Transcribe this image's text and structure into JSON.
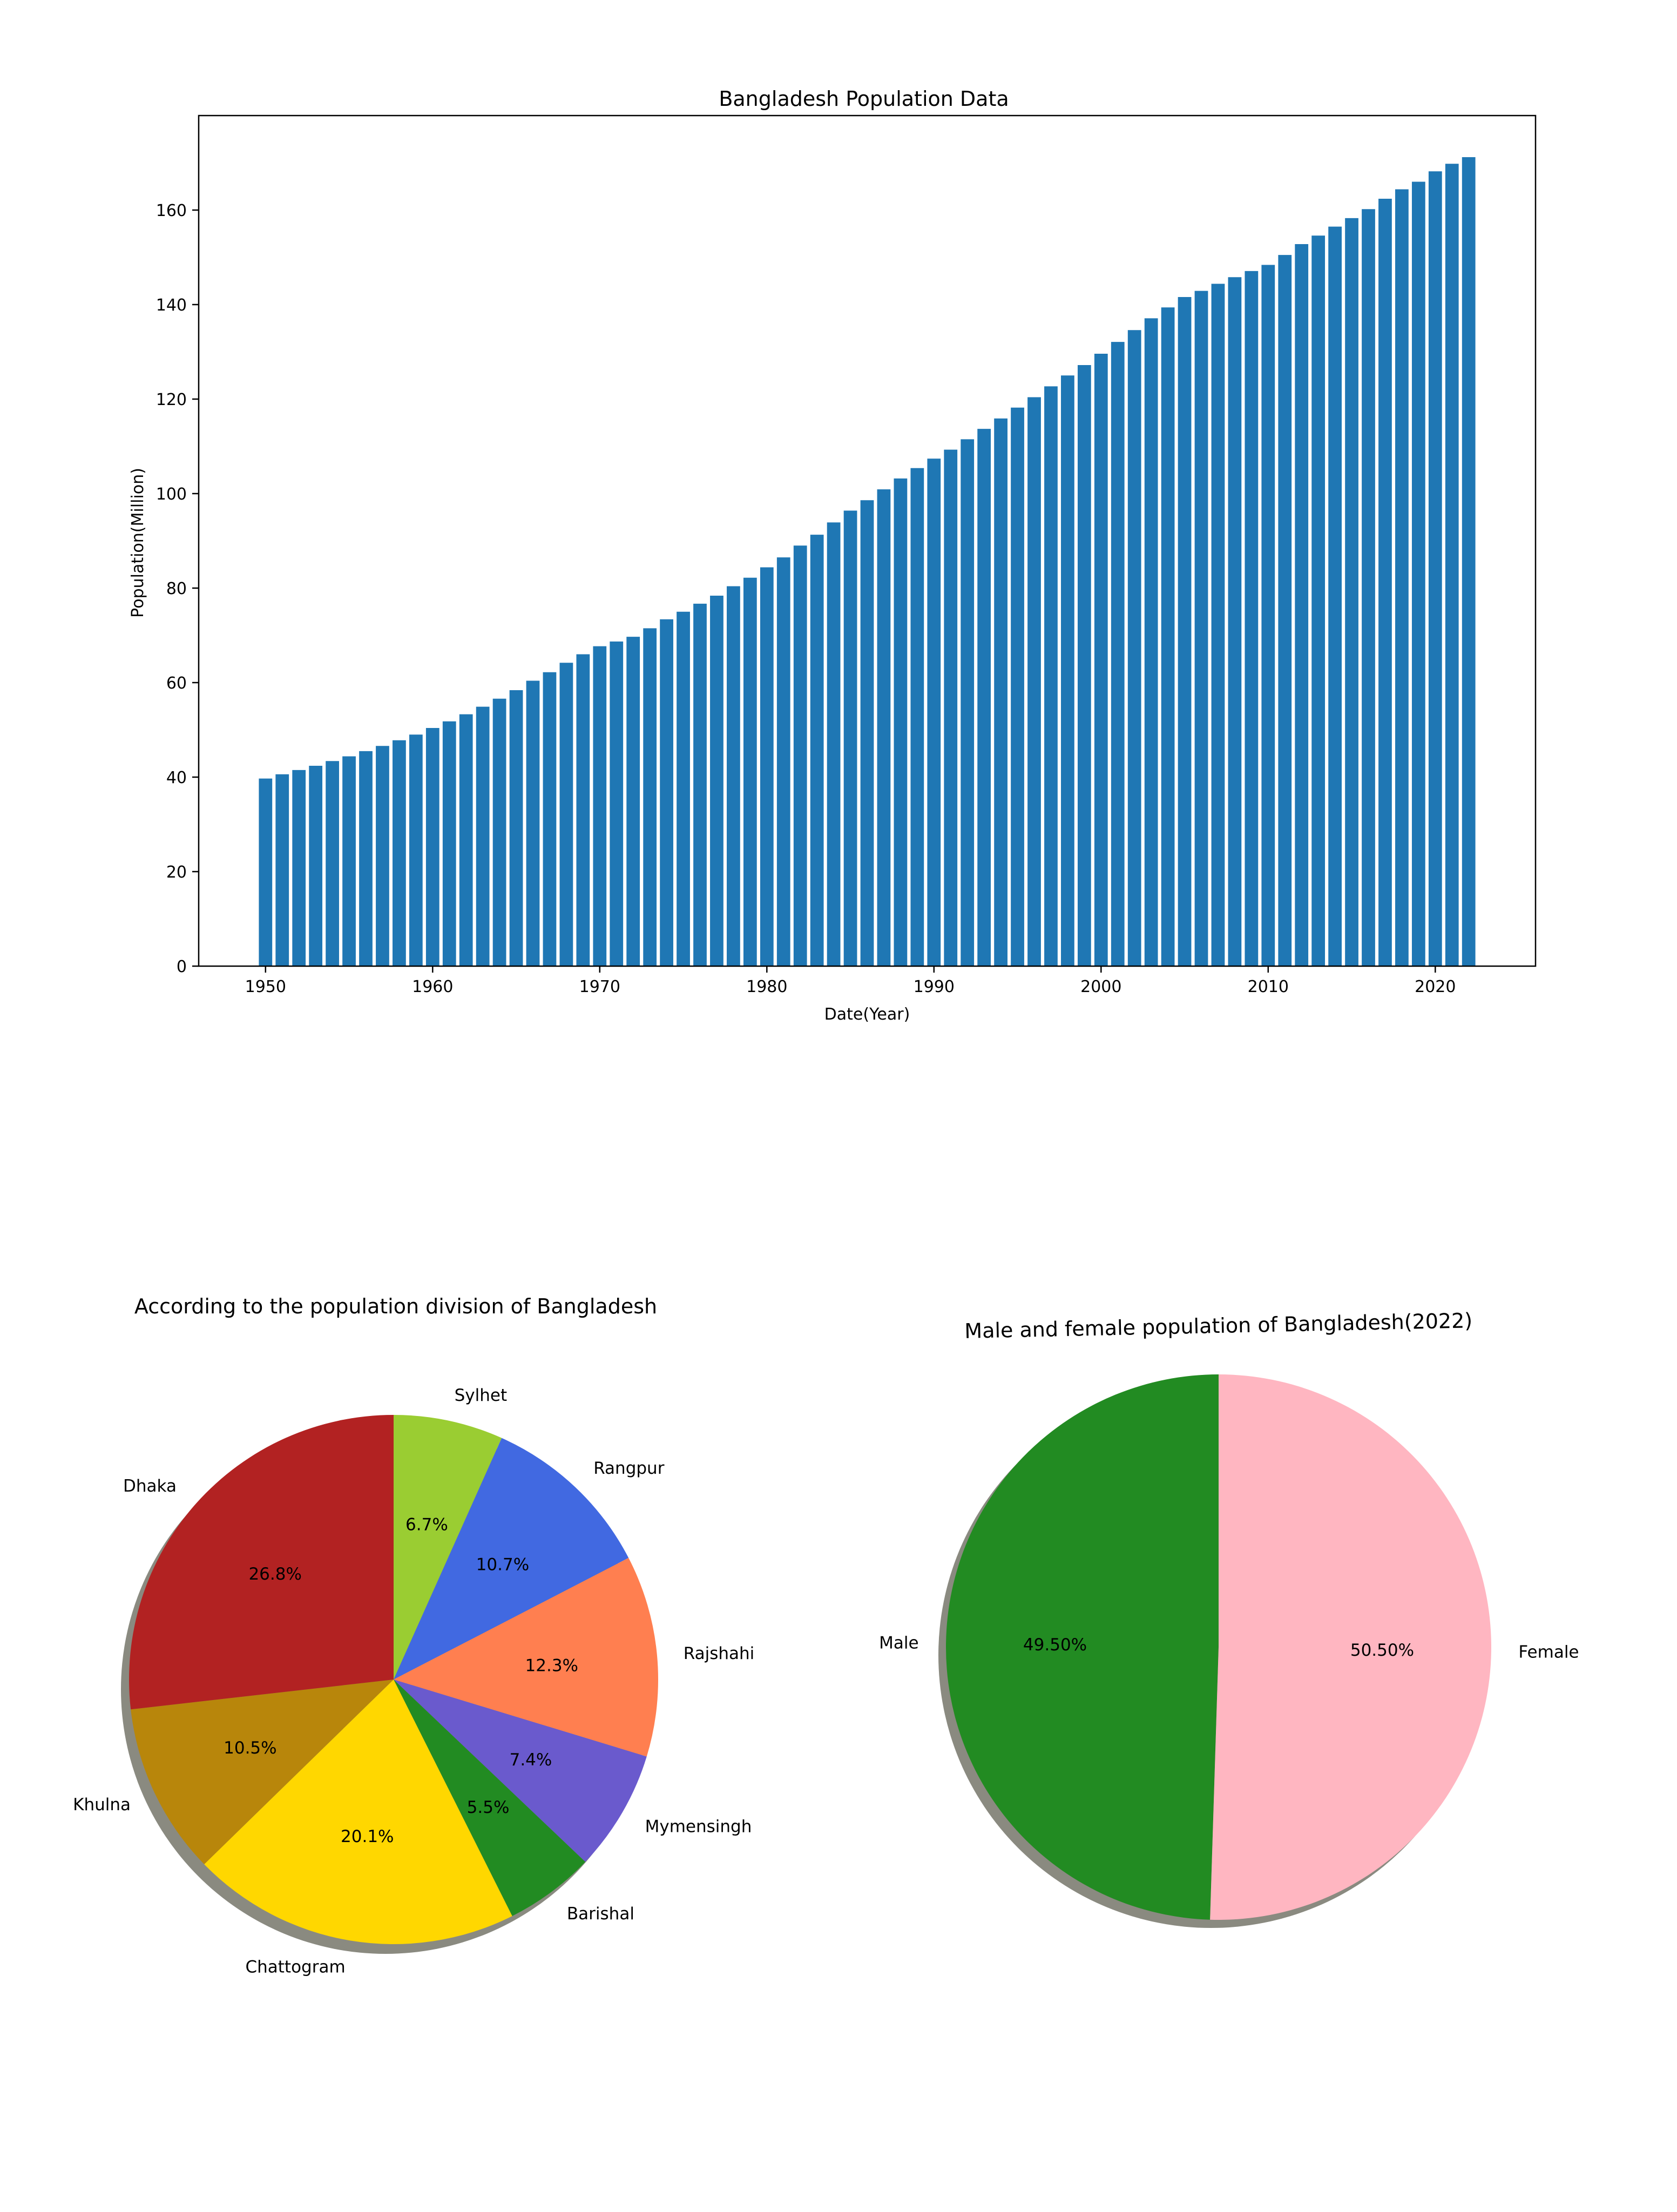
{
  "chart_data": [
    {
      "type": "bar",
      "title": "Bangladesh Population Data",
      "xlabel": "Date(Year)",
      "ylabel": "Population(Million)",
      "xlim": [
        1946,
        2026
      ],
      "ylim": [
        0,
        180
      ],
      "xticks": [
        1950,
        1960,
        1970,
        1980,
        1990,
        2000,
        2010,
        2020
      ],
      "yticks": [
        0,
        20,
        40,
        60,
        80,
        100,
        120,
        140,
        160
      ],
      "grid": false,
      "color": "#1f77b4",
      "x": [
        1950,
        1951,
        1952,
        1953,
        1954,
        1955,
        1956,
        1957,
        1958,
        1959,
        1960,
        1961,
        1962,
        1963,
        1964,
        1965,
        1966,
        1967,
        1968,
        1969,
        1970,
        1971,
        1972,
        1973,
        1974,
        1975,
        1976,
        1977,
        1978,
        1979,
        1980,
        1981,
        1982,
        1983,
        1984,
        1985,
        1986,
        1987,
        1988,
        1989,
        1990,
        1991,
        1992,
        1993,
        1994,
        1995,
        1996,
        1997,
        1998,
        1999,
        2000,
        2001,
        2002,
        2003,
        2004,
        2005,
        2006,
        2007,
        2008,
        2009,
        2010,
        2011,
        2012,
        2013,
        2014,
        2015,
        2016,
        2017,
        2018,
        2019,
        2020,
        2021,
        2022
      ],
      "values": [
        39.7,
        40.6,
        41.5,
        42.4,
        43.4,
        44.4,
        45.5,
        46.6,
        47.8,
        49.0,
        50.4,
        51.8,
        53.3,
        54.9,
        56.6,
        58.4,
        60.4,
        62.2,
        64.2,
        66.0,
        67.7,
        68.7,
        69.7,
        71.5,
        73.4,
        75.0,
        76.7,
        78.4,
        80.4,
        82.2,
        84.4,
        86.5,
        89.0,
        91.3,
        93.9,
        96.4,
        98.6,
        100.9,
        103.2,
        105.4,
        107.4,
        109.3,
        111.5,
        113.7,
        115.9,
        118.2,
        120.4,
        122.7,
        125.0,
        127.2,
        129.6,
        132.1,
        134.6,
        137.1,
        139.4,
        141.6,
        142.9,
        144.4,
        145.8,
        147.1,
        148.4,
        150.5,
        152.8,
        154.6,
        156.5,
        158.3,
        160.2,
        162.4,
        164.4,
        166.0,
        168.2,
        169.8,
        171.2
      ]
    },
    {
      "type": "pie",
      "title": "According to the population division of Bangladesh",
      "start_angle": 90,
      "counterclock": false,
      "shadow": true,
      "slices": [
        {
          "label": "Sylhet",
          "pct": "6.7%",
          "value": 6.7,
          "color": "#9acd32"
        },
        {
          "label": "Rangpur",
          "pct": "10.7%",
          "value": 10.7,
          "color": "#4169e1"
        },
        {
          "label": "Rajshahi",
          "pct": "12.3%",
          "value": 12.3,
          "color": "#ff7f50"
        },
        {
          "label": "Mymensingh",
          "pct": "7.4%",
          "value": 7.4,
          "color": "#6a5acd"
        },
        {
          "label": "Barishal",
          "pct": "5.5%",
          "value": 5.5,
          "color": "#228b22"
        },
        {
          "label": "Chattogram",
          "pct": "20.1%",
          "value": 20.1,
          "color": "#ffd700"
        },
        {
          "label": "Khulna",
          "pct": "10.5%",
          "value": 10.5,
          "color": "#b8860b"
        },
        {
          "label": "Dhaka",
          "pct": "26.8%",
          "value": 26.8,
          "color": "#b22222"
        }
      ]
    },
    {
      "type": "pie",
      "title": "Male and female population of Bangladesh(2022)",
      "start_angle": 90,
      "counterclock": true,
      "shadow": true,
      "slices": [
        {
          "label": "Male",
          "pct": "49.50%",
          "value": 49.5,
          "color": "#228b22"
        },
        {
          "label": "Female",
          "pct": "50.50%",
          "value": 50.5,
          "color": "#ffb6c1"
        }
      ]
    }
  ]
}
